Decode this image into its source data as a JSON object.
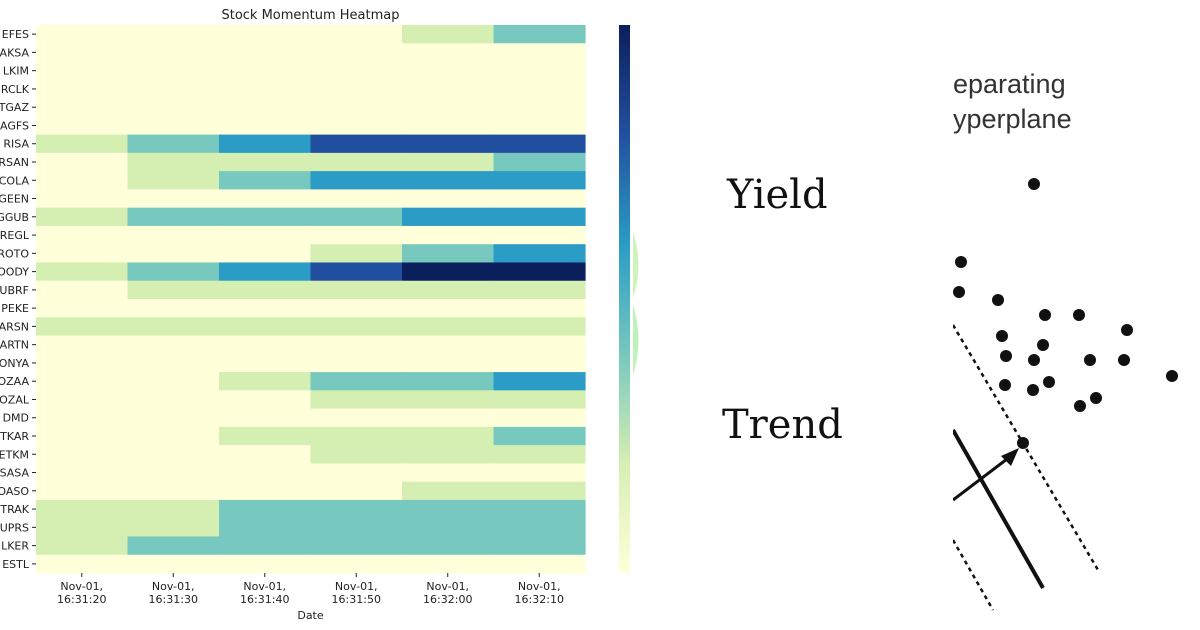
{
  "chart_data": {
    "type": "heatmap",
    "title": "Stock Momentum Heatmap",
    "xlabel": "Date",
    "ylabel": "",
    "x_categories": [
      "Nov-01,\n16:31:20",
      "Nov-01,\n16:31:30",
      "Nov-01,\n16:31:40",
      "Nov-01,\n16:31:50",
      "Nov-01,\n16:32:00",
      "Nov-01,\n16:32:10"
    ],
    "y_categories": [
      "EFES",
      "AKSA",
      "LKIM",
      "RCLK",
      "TGAZ",
      "AGFS",
      "RISA",
      "RSAN",
      "COLA",
      "GEEN",
      "GGUB",
      "REGL",
      "ROTO",
      "OODY",
      "UBRF",
      "PEKE",
      "ARSN",
      "ARTN",
      "ONYA",
      "OZAA",
      "OZAL",
      "DMD",
      "TKAR",
      "ETKM",
      "SASA",
      "OASO",
      "TRAK",
      "UPRS",
      "LKER",
      "ESTL"
    ],
    "values": [
      [
        0,
        0,
        0,
        0,
        1,
        2
      ],
      [
        0,
        0,
        0,
        0,
        0,
        0
      ],
      [
        0,
        0,
        0,
        0,
        0,
        0
      ],
      [
        0,
        0,
        0,
        0,
        0,
        0
      ],
      [
        0,
        0,
        0,
        0,
        0,
        0
      ],
      [
        0,
        0,
        0,
        0,
        0,
        0
      ],
      [
        1,
        2,
        3,
        4,
        4,
        4
      ],
      [
        0,
        1,
        1,
        1,
        1,
        2
      ],
      [
        0,
        1,
        2,
        3,
        3,
        3
      ],
      [
        0,
        0,
        0,
        0,
        0,
        0
      ],
      [
        1,
        2,
        2,
        2,
        3,
        3
      ],
      [
        0,
        0,
        0,
        0,
        0,
        0
      ],
      [
        0,
        0,
        0,
        1,
        2,
        3
      ],
      [
        1,
        2,
        3,
        4,
        5,
        5
      ],
      [
        0,
        1,
        1,
        1,
        1,
        1
      ],
      [
        0,
        0,
        0,
        0,
        0,
        0
      ],
      [
        1,
        1,
        1,
        1,
        1,
        1
      ],
      [
        0,
        0,
        0,
        0,
        0,
        0
      ],
      [
        0,
        0,
        0,
        0,
        0,
        0
      ],
      [
        0,
        0,
        1,
        2,
        2,
        3
      ],
      [
        0,
        0,
        0,
        1,
        1,
        1
      ],
      [
        0,
        0,
        0,
        0,
        0,
        0
      ],
      [
        0,
        0,
        1,
        1,
        1,
        2
      ],
      [
        0,
        0,
        0,
        1,
        1,
        1
      ],
      [
        0,
        0,
        0,
        0,
        0,
        0
      ],
      [
        0,
        0,
        0,
        0,
        1,
        1
      ],
      [
        1,
        1,
        2,
        2,
        2,
        2
      ],
      [
        1,
        1,
        2,
        2,
        2,
        2
      ],
      [
        1,
        2,
        2,
        2,
        2,
        2
      ],
      [
        0,
        0,
        0,
        0,
        0,
        0
      ]
    ],
    "colorscale": [
      "#ffffd9",
      "#d5efb3",
      "#77c8be",
      "#2a9cc5",
      "#2250a0",
      "#0b1f5c"
    ],
    "colorbar": true,
    "grid": false
  },
  "overlays": {
    "word_yield": "Yield",
    "word_trend": "Trend",
    "svm_label_line1": "eparating",
    "svm_label_line2": "yperplane"
  }
}
